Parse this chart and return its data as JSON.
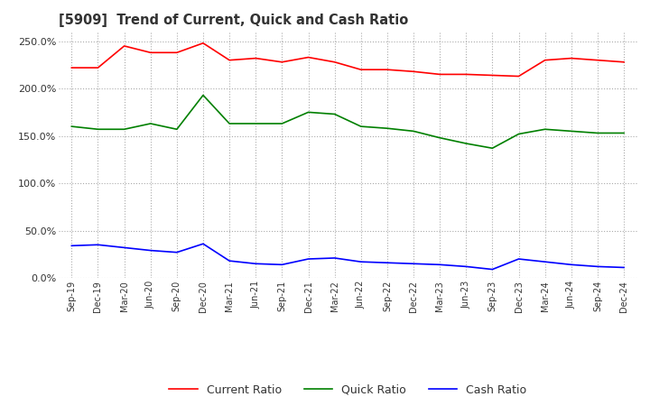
{
  "title": "[5909]  Trend of Current, Quick and Cash Ratio",
  "x_labels": [
    "Sep-19",
    "Dec-19",
    "Mar-20",
    "Jun-20",
    "Sep-20",
    "Dec-20",
    "Mar-21",
    "Jun-21",
    "Sep-21",
    "Dec-21",
    "Mar-22",
    "Jun-22",
    "Sep-22",
    "Dec-22",
    "Mar-23",
    "Jun-23",
    "Sep-23",
    "Dec-23",
    "Mar-24",
    "Jun-24",
    "Sep-24",
    "Dec-24"
  ],
  "current_ratio": [
    222,
    222,
    245,
    238,
    238,
    248,
    230,
    232,
    228,
    233,
    228,
    220,
    220,
    218,
    215,
    215,
    214,
    213,
    230,
    232,
    230,
    228
  ],
  "quick_ratio": [
    160,
    157,
    157,
    163,
    157,
    193,
    163,
    163,
    163,
    175,
    173,
    160,
    158,
    155,
    148,
    142,
    137,
    152,
    157,
    155,
    153,
    153
  ],
  "cash_ratio": [
    34,
    35,
    32,
    29,
    27,
    36,
    18,
    15,
    14,
    20,
    21,
    17,
    16,
    15,
    14,
    12,
    9,
    20,
    17,
    14,
    12,
    11
  ],
  "current_color": "#ff0000",
  "quick_color": "#008000",
  "cash_color": "#0000ff",
  "ylim": [
    0,
    260
  ],
  "yticks": [
    0,
    50,
    100,
    150,
    200,
    250
  ],
  "background_color": "#ffffff",
  "grid_color": "#aaaaaa"
}
